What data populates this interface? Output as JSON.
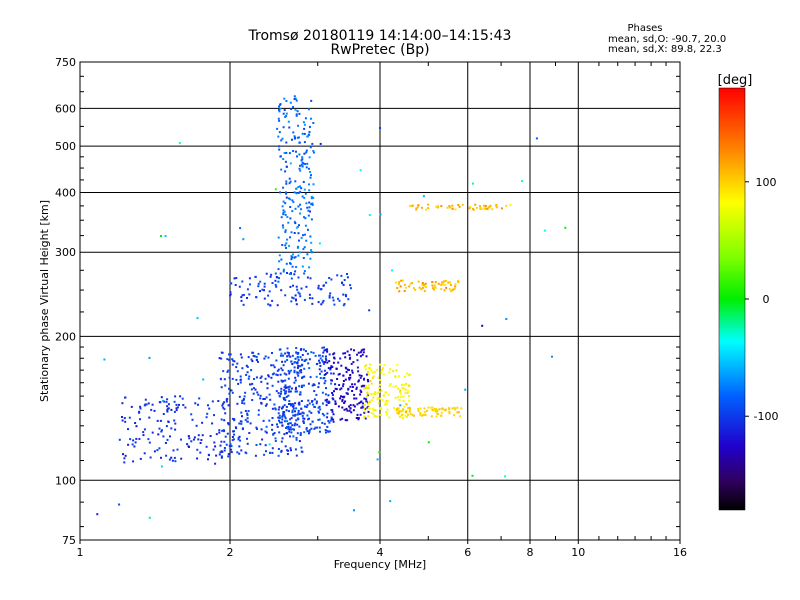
{
  "chart_data": {
    "type": "scatter",
    "title": "Tromsø 20180119 14:14:00–14:15:43",
    "subtitle": "RwPretec (Bp)",
    "xlabel": "Frequency [MHz]",
    "ylabel": "Stationary phase Virtual Height [km]",
    "x_scale": "log",
    "y_scale": "log",
    "xlim": [
      1,
      16
    ],
    "ylim": [
      75,
      750
    ],
    "x_ticks": [
      1,
      2,
      4,
      6,
      8,
      10,
      16
    ],
    "y_ticks": [
      75,
      100,
      200,
      300,
      400,
      500,
      600,
      750
    ],
    "grid": true,
    "colorbar": {
      "label": "[deg]",
      "range": [
        -180,
        180
      ],
      "ticks": [
        100,
        0,
        -100
      ]
    },
    "stats": {
      "heading": "Phases",
      "line_o": "mean, sd,O: -90.7, 20.0",
      "line_x": "mean, sd,X:  89.8, 22.3"
    },
    "clusters": [
      {
        "fmin": 1.2,
        "fmax": 2.0,
        "hmin": 108,
        "hmax": 150,
        "phase_mean": -105,
        "phase_sd": 12,
        "n": 160
      },
      {
        "fmin": 1.9,
        "fmax": 2.8,
        "hmin": 112,
        "hmax": 185,
        "phase_mean": -100,
        "phase_sd": 12,
        "n": 320
      },
      {
        "fmin": 2.5,
        "fmax": 3.2,
        "hmin": 125,
        "hmax": 190,
        "phase_mean": -95,
        "phase_sd": 14,
        "n": 260
      },
      {
        "fmin": 3.1,
        "fmax": 3.8,
        "hmin": 132,
        "hmax": 188,
        "phase_mean": -125,
        "phase_sd": 14,
        "n": 180
      },
      {
        "fmin": 3.7,
        "fmax": 4.6,
        "hmin": 135,
        "hmax": 175,
        "phase_mean": 85,
        "phase_sd": 12,
        "n": 140
      },
      {
        "fmin": 4.3,
        "fmax": 5.9,
        "hmin": 136,
        "hmax": 142,
        "phase_mean": 100,
        "phase_sd": 8,
        "n": 70
      },
      {
        "fmin": 2.5,
        "fmax": 2.95,
        "hmin": 270,
        "hmax": 640,
        "phase_mean": -80,
        "phase_sd": 18,
        "n": 240
      },
      {
        "fmin": 2.0,
        "fmax": 3.5,
        "hmin": 232,
        "hmax": 272,
        "phase_mean": -100,
        "phase_sd": 12,
        "n": 120
      },
      {
        "fmin": 4.3,
        "fmax": 5.9,
        "hmin": 248,
        "hmax": 262,
        "phase_mean": 110,
        "phase_sd": 18,
        "n": 60
      },
      {
        "fmin": 4.6,
        "fmax": 7.4,
        "hmin": 368,
        "hmax": 378,
        "phase_mean": 110,
        "phase_sd": 20,
        "n": 55
      },
      {
        "fmin": 1.05,
        "fmax": 9.5,
        "hmin": 80,
        "hmax": 620,
        "phase_mean": -60,
        "phase_sd": 70,
        "n": 45
      }
    ]
  }
}
